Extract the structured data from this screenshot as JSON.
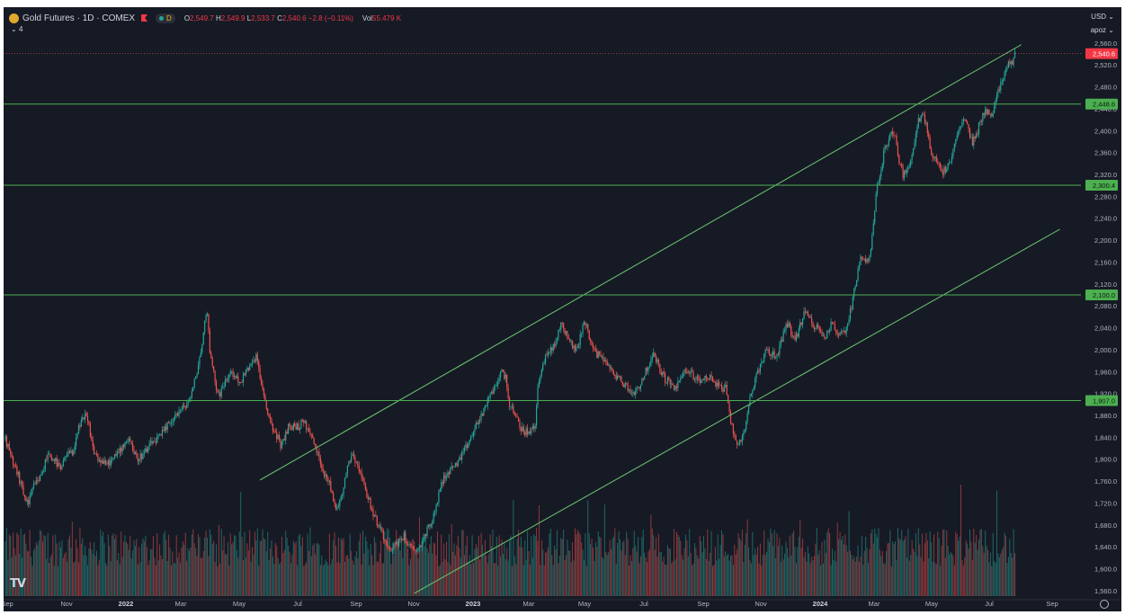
{
  "legend": {
    "symbol_title": "Gold Futures · 1D · COMEX",
    "interval_badge": "D",
    "o_label": "O",
    "o_value": "2,549.7",
    "h_label": "H",
    "h_value": "2,549.9",
    "l_label": "L",
    "l_value": "2,533.7",
    "c_label": "C",
    "c_value": "2,540.6",
    "change": "−2.8 (−0.11%)",
    "vol_label": "Vol",
    "vol_value": "55.479 K",
    "indicator_count": "4"
  },
  "controls": {
    "currency": "USD",
    "scale_mode": "apoz"
  },
  "colors": {
    "background": "#161a25",
    "up": "#26a69a",
    "down": "#ef5350",
    "level_line": "#4caf50",
    "trend_line": "#66bb6a",
    "text": "#b2b5be"
  },
  "chart_data": {
    "type": "candlestick",
    "title": "Gold Futures · 1D · COMEX",
    "xlabel": "",
    "ylabel": "",
    "ylim": [
      1545,
      2568
    ],
    "x_ticks": [
      "Sep",
      "Nov",
      "2022",
      "Mar",
      "May",
      "Jul",
      "Sep",
      "Nov",
      "2023",
      "Mar",
      "May",
      "Jul",
      "Sep",
      "Nov",
      "2024",
      "Mar",
      "May",
      "Jul",
      "Sep"
    ],
    "y_ticks": [
      "2,560.0",
      "2,520.0",
      "2,480.0",
      "2,440.0",
      "2,400.0",
      "2,360.0",
      "2,320.0",
      "2,280.0",
      "2,240.0",
      "2,200.0",
      "2,160.0",
      "2,120.0",
      "2,080.0",
      "2,040.0",
      "2,000.0",
      "1,960.0",
      "1,920.0",
      "1,880.0",
      "1,840.0",
      "1,800.0",
      "1,760.0",
      "1,720.0",
      "1,680.0",
      "1,640.0",
      "1,600.0",
      "1,560.0"
    ],
    "price_anchors": [
      [
        0,
        1835
      ],
      [
        5,
        1800
      ],
      [
        10,
        1770
      ],
      [
        15,
        1730
      ],
      [
        18,
        1720
      ],
      [
        22,
        1750
      ],
      [
        28,
        1770
      ],
      [
        33,
        1810
      ],
      [
        38,
        1800
      ],
      [
        43,
        1780
      ],
      [
        48,
        1810
      ],
      [
        52,
        1810
      ],
      [
        56,
        1850
      ],
      [
        60,
        1870
      ],
      [
        62,
        1880
      ],
      [
        65,
        1860
      ],
      [
        68,
        1820
      ],
      [
        72,
        1800
      ],
      [
        78,
        1790
      ],
      [
        84,
        1800
      ],
      [
        90,
        1820
      ],
      [
        96,
        1840
      ],
      [
        102,
        1800
      ],
      [
        108,
        1810
      ],
      [
        114,
        1830
      ],
      [
        120,
        1840
      ],
      [
        126,
        1860
      ],
      [
        132,
        1880
      ],
      [
        137,
        1890
      ],
      [
        141,
        1900
      ],
      [
        145,
        1920
      ],
      [
        148,
        1950
      ],
      [
        151,
        1985
      ],
      [
        153,
        2010
      ],
      [
        155,
        2050
      ],
      [
        157,
        2070
      ],
      [
        159,
        2000
      ],
      [
        161,
        1970
      ],
      [
        164,
        1930
      ],
      [
        167,
        1920
      ],
      [
        171,
        1940
      ],
      [
        175,
        1960
      ],
      [
        179,
        1950
      ],
      [
        183,
        1940
      ],
      [
        187,
        1960
      ],
      [
        191,
        1970
      ],
      [
        195,
        1990
      ],
      [
        198,
        1950
      ],
      [
        202,
        1900
      ],
      [
        206,
        1870
      ],
      [
        209,
        1850
      ],
      [
        212,
        1840
      ],
      [
        214,
        1820
      ],
      [
        217,
        1840
      ],
      [
        220,
        1860
      ],
      [
        224,
        1860
      ],
      [
        228,
        1860
      ],
      [
        232,
        1870
      ],
      [
        236,
        1850
      ],
      [
        240,
        1830
      ],
      [
        244,
        1800
      ],
      [
        248,
        1775
      ],
      [
        252,
        1760
      ],
      [
        255,
        1720
      ],
      [
        258,
        1710
      ],
      [
        262,
        1740
      ],
      [
        266,
        1790
      ],
      [
        270,
        1810
      ],
      [
        274,
        1790
      ],
      [
        278,
        1760
      ],
      [
        282,
        1730
      ],
      [
        286,
        1700
      ],
      [
        290,
        1680
      ],
      [
        294,
        1660
      ],
      [
        298,
        1640
      ],
      [
        302,
        1640
      ],
      [
        306,
        1650
      ],
      [
        310,
        1660
      ],
      [
        314,
        1640
      ],
      [
        318,
        1630
      ],
      [
        322,
        1640
      ],
      [
        326,
        1660
      ],
      [
        330,
        1680
      ],
      [
        334,
        1700
      ],
      [
        338,
        1750
      ],
      [
        342,
        1770
      ],
      [
        346,
        1780
      ],
      [
        350,
        1790
      ],
      [
        354,
        1800
      ],
      [
        358,
        1820
      ],
      [
        362,
        1840
      ],
      [
        366,
        1860
      ],
      [
        370,
        1880
      ],
      [
        374,
        1900
      ],
      [
        378,
        1920
      ],
      [
        382,
        1940
      ],
      [
        386,
        1960
      ],
      [
        389,
        1950
      ],
      [
        392,
        1900
      ],
      [
        396,
        1880
      ],
      [
        400,
        1860
      ],
      [
        404,
        1850
      ],
      [
        408,
        1850
      ],
      [
        412,
        1860
      ],
      [
        414,
        1930
      ],
      [
        417,
        1970
      ],
      [
        421,
        1990
      ],
      [
        425,
        2000
      ],
      [
        429,
        2020
      ],
      [
        432,
        2050
      ],
      [
        436,
        2030
      ],
      [
        440,
        2010
      ],
      [
        443,
        2000
      ],
      [
        446,
        2010
      ],
      [
        449,
        2050
      ],
      [
        452,
        2040
      ],
      [
        456,
        2010
      ],
      [
        460,
        1990
      ],
      [
        464,
        1990
      ],
      [
        468,
        1970
      ],
      [
        472,
        1960
      ],
      [
        476,
        1950
      ],
      [
        480,
        1940
      ],
      [
        484,
        1930
      ],
      [
        488,
        1920
      ],
      [
        492,
        1930
      ],
      [
        496,
        1950
      ],
      [
        500,
        1970
      ],
      [
        504,
        1990
      ],
      [
        508,
        1970
      ],
      [
        512,
        1950
      ],
      [
        516,
        1940
      ],
      [
        520,
        1930
      ],
      [
        524,
        1940
      ],
      [
        528,
        1960
      ],
      [
        532,
        1960
      ],
      [
        536,
        1950
      ],
      [
        540,
        1940
      ],
      [
        544,
        1950
      ],
      [
        548,
        1950
      ],
      [
        552,
        1940
      ],
      [
        556,
        1930
      ],
      [
        560,
        1930
      ],
      [
        563,
        1880
      ],
      [
        566,
        1850
      ],
      [
        569,
        1830
      ],
      [
        572,
        1830
      ],
      [
        575,
        1860
      ],
      [
        578,
        1900
      ],
      [
        581,
        1930
      ],
      [
        584,
        1950
      ],
      [
        588,
        1980
      ],
      [
        592,
        2000
      ],
      [
        596,
        1990
      ],
      [
        600,
        1990
      ],
      [
        604,
        2020
      ],
      [
        607,
        2050
      ],
      [
        610,
        2040
      ],
      [
        613,
        2020
      ],
      [
        616,
        2030
      ],
      [
        619,
        2050
      ],
      [
        622,
        2070
      ],
      [
        625,
        2060
      ],
      [
        628,
        2040
      ],
      [
        631,
        2050
      ],
      [
        634,
        2030
      ],
      [
        637,
        2020
      ],
      [
        640,
        2040
      ],
      [
        643,
        2050
      ],
      [
        646,
        2030
      ],
      [
        649,
        2030
      ],
      [
        652,
        2030
      ],
      [
        655,
        2050
      ],
      [
        658,
        2080
      ],
      [
        661,
        2120
      ],
      [
        664,
        2160
      ],
      [
        667,
        2170
      ],
      [
        670,
        2160
      ],
      [
        673,
        2180
      ],
      [
        675,
        2230
      ],
      [
        677,
        2280
      ],
      [
        679,
        2310
      ],
      [
        681,
        2330
      ],
      [
        683,
        2360
      ],
      [
        686,
        2380
      ],
      [
        689,
        2400
      ],
      [
        692,
        2390
      ],
      [
        695,
        2340
      ],
      [
        698,
        2320
      ],
      [
        701,
        2330
      ],
      [
        704,
        2340
      ],
      [
        707,
        2380
      ],
      [
        710,
        2420
      ],
      [
        713,
        2430
      ],
      [
        716,
        2410
      ],
      [
        719,
        2370
      ],
      [
        722,
        2350
      ],
      [
        725,
        2340
      ],
      [
        728,
        2320
      ],
      [
        731,
        2330
      ],
      [
        734,
        2340
      ],
      [
        737,
        2360
      ],
      [
        740,
        2390
      ],
      [
        743,
        2410
      ],
      [
        746,
        2420
      ],
      [
        749,
        2400
      ],
      [
        752,
        2380
      ],
      [
        755,
        2390
      ],
      [
        758,
        2420
      ],
      [
        761,
        2430
      ],
      [
        764,
        2440
      ],
      [
        767,
        2420
      ],
      [
        770,
        2460
      ],
      [
        773,
        2480
      ],
      [
        776,
        2500
      ],
      [
        779,
        2520
      ],
      [
        782,
        2520
      ],
      [
        785,
        2540
      ]
    ],
    "horizontal_levels": [
      {
        "value": 2448.6,
        "label": "2,448.6"
      },
      {
        "value": 2300.4,
        "label": "2,300.4"
      },
      {
        "value": 2100.0,
        "label": "2,100.0"
      },
      {
        "value": 1907.0,
        "label": "1,907.0"
      }
    ],
    "last_price": {
      "value": 2540.6,
      "label": "2,540.6"
    },
    "trend_channel": [
      {
        "name": "upper",
        "from": {
          "bar": 198,
          "price": 1762
        },
        "to": {
          "bar": 790,
          "price": 2557
        }
      },
      {
        "name": "lower",
        "from": {
          "bar": 318,
          "price": 1555
        },
        "to": {
          "bar": 820,
          "price": 2220
        }
      }
    ]
  }
}
